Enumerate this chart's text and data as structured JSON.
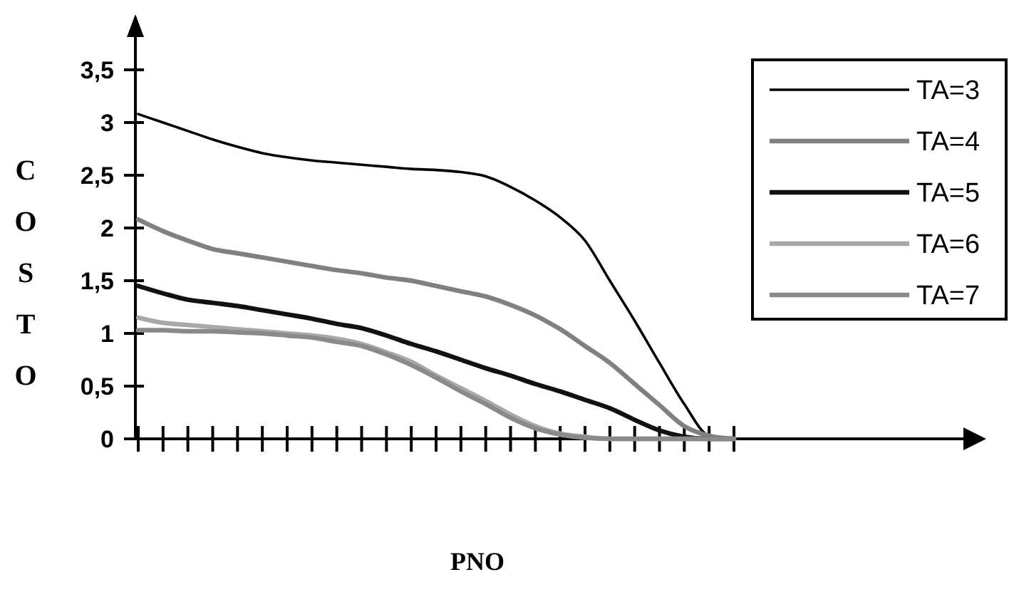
{
  "chart_data": {
    "type": "line",
    "xlabel": "PNO",
    "ylabel": "COSTO",
    "categories": [
      null,
      null,
      null,
      null,
      null,
      null,
      null,
      null,
      null,
      null,
      null,
      null,
      null,
      null,
      null,
      null,
      null,
      null,
      null,
      null,
      null,
      null,
      null,
      null,
      null
    ],
    "ylim": [
      0,
      4
    ],
    "yticks": [
      0,
      {
        "value": 0.5,
        "label": "0,5"
      },
      1,
      {
        "value": 1.5,
        "label": "1,5"
      },
      2,
      {
        "value": 2.5,
        "label": "2,5"
      },
      3,
      {
        "value": 3.5,
        "label": "3,5"
      }
    ],
    "tick_labels": "y",
    "legend": "right",
    "series": [
      {
        "name": "TA=3",
        "color": "#000000",
        "line_style": "solid",
        "values": [
          3.08,
          3.0,
          2.92,
          2.84,
          2.77,
          2.71,
          2.67,
          2.64,
          2.62,
          2.6,
          2.58,
          2.56,
          2.55,
          2.53,
          2.49,
          2.39,
          2.26,
          2.1,
          1.88,
          1.5,
          1.12,
          0.72,
          0.33,
          0.03,
          0
        ]
      },
      {
        "name": "TA=4",
        "color": "#808080",
        "line_style": "solid",
        "values": [
          2.08,
          1.97,
          1.88,
          1.8,
          1.76,
          1.72,
          1.68,
          1.64,
          1.6,
          1.57,
          1.53,
          1.5,
          1.45,
          1.4,
          1.35,
          1.27,
          1.17,
          1.04,
          0.88,
          0.72,
          0.52,
          0.32,
          0.12,
          0.03,
          0
        ]
      },
      {
        "name": "TA=5",
        "color": "#111111",
        "line_style": "solid",
        "values": [
          1.45,
          1.38,
          1.32,
          1.29,
          1.26,
          1.22,
          1.18,
          1.14,
          1.09,
          1.05,
          0.98,
          0.9,
          0.83,
          0.75,
          0.67,
          0.6,
          0.52,
          0.45,
          0.37,
          0.29,
          0.18,
          0.08,
          0.02,
          0,
          0
        ]
      },
      {
        "name": "TA=6",
        "color": "#a8a8a8",
        "line_style": "solid",
        "values": [
          1.15,
          1.1,
          1.08,
          1.06,
          1.04,
          1.02,
          1.0,
          0.98,
          0.95,
          0.9,
          0.82,
          0.73,
          0.6,
          0.48,
          0.36,
          0.23,
          0.12,
          0.05,
          0.02,
          0,
          0,
          0,
          0,
          0,
          0
        ]
      },
      {
        "name": "TA=7",
        "color": "#8a8a8a",
        "line_style": "solid",
        "values": [
          1.03,
          1.03,
          1.02,
          1.02,
          1.01,
          1.0,
          0.98,
          0.96,
          0.92,
          0.88,
          0.8,
          0.7,
          0.58,
          0.45,
          0.33,
          0.2,
          0.1,
          0.04,
          0.01,
          0,
          0,
          0,
          0,
          0,
          0
        ]
      }
    ]
  }
}
